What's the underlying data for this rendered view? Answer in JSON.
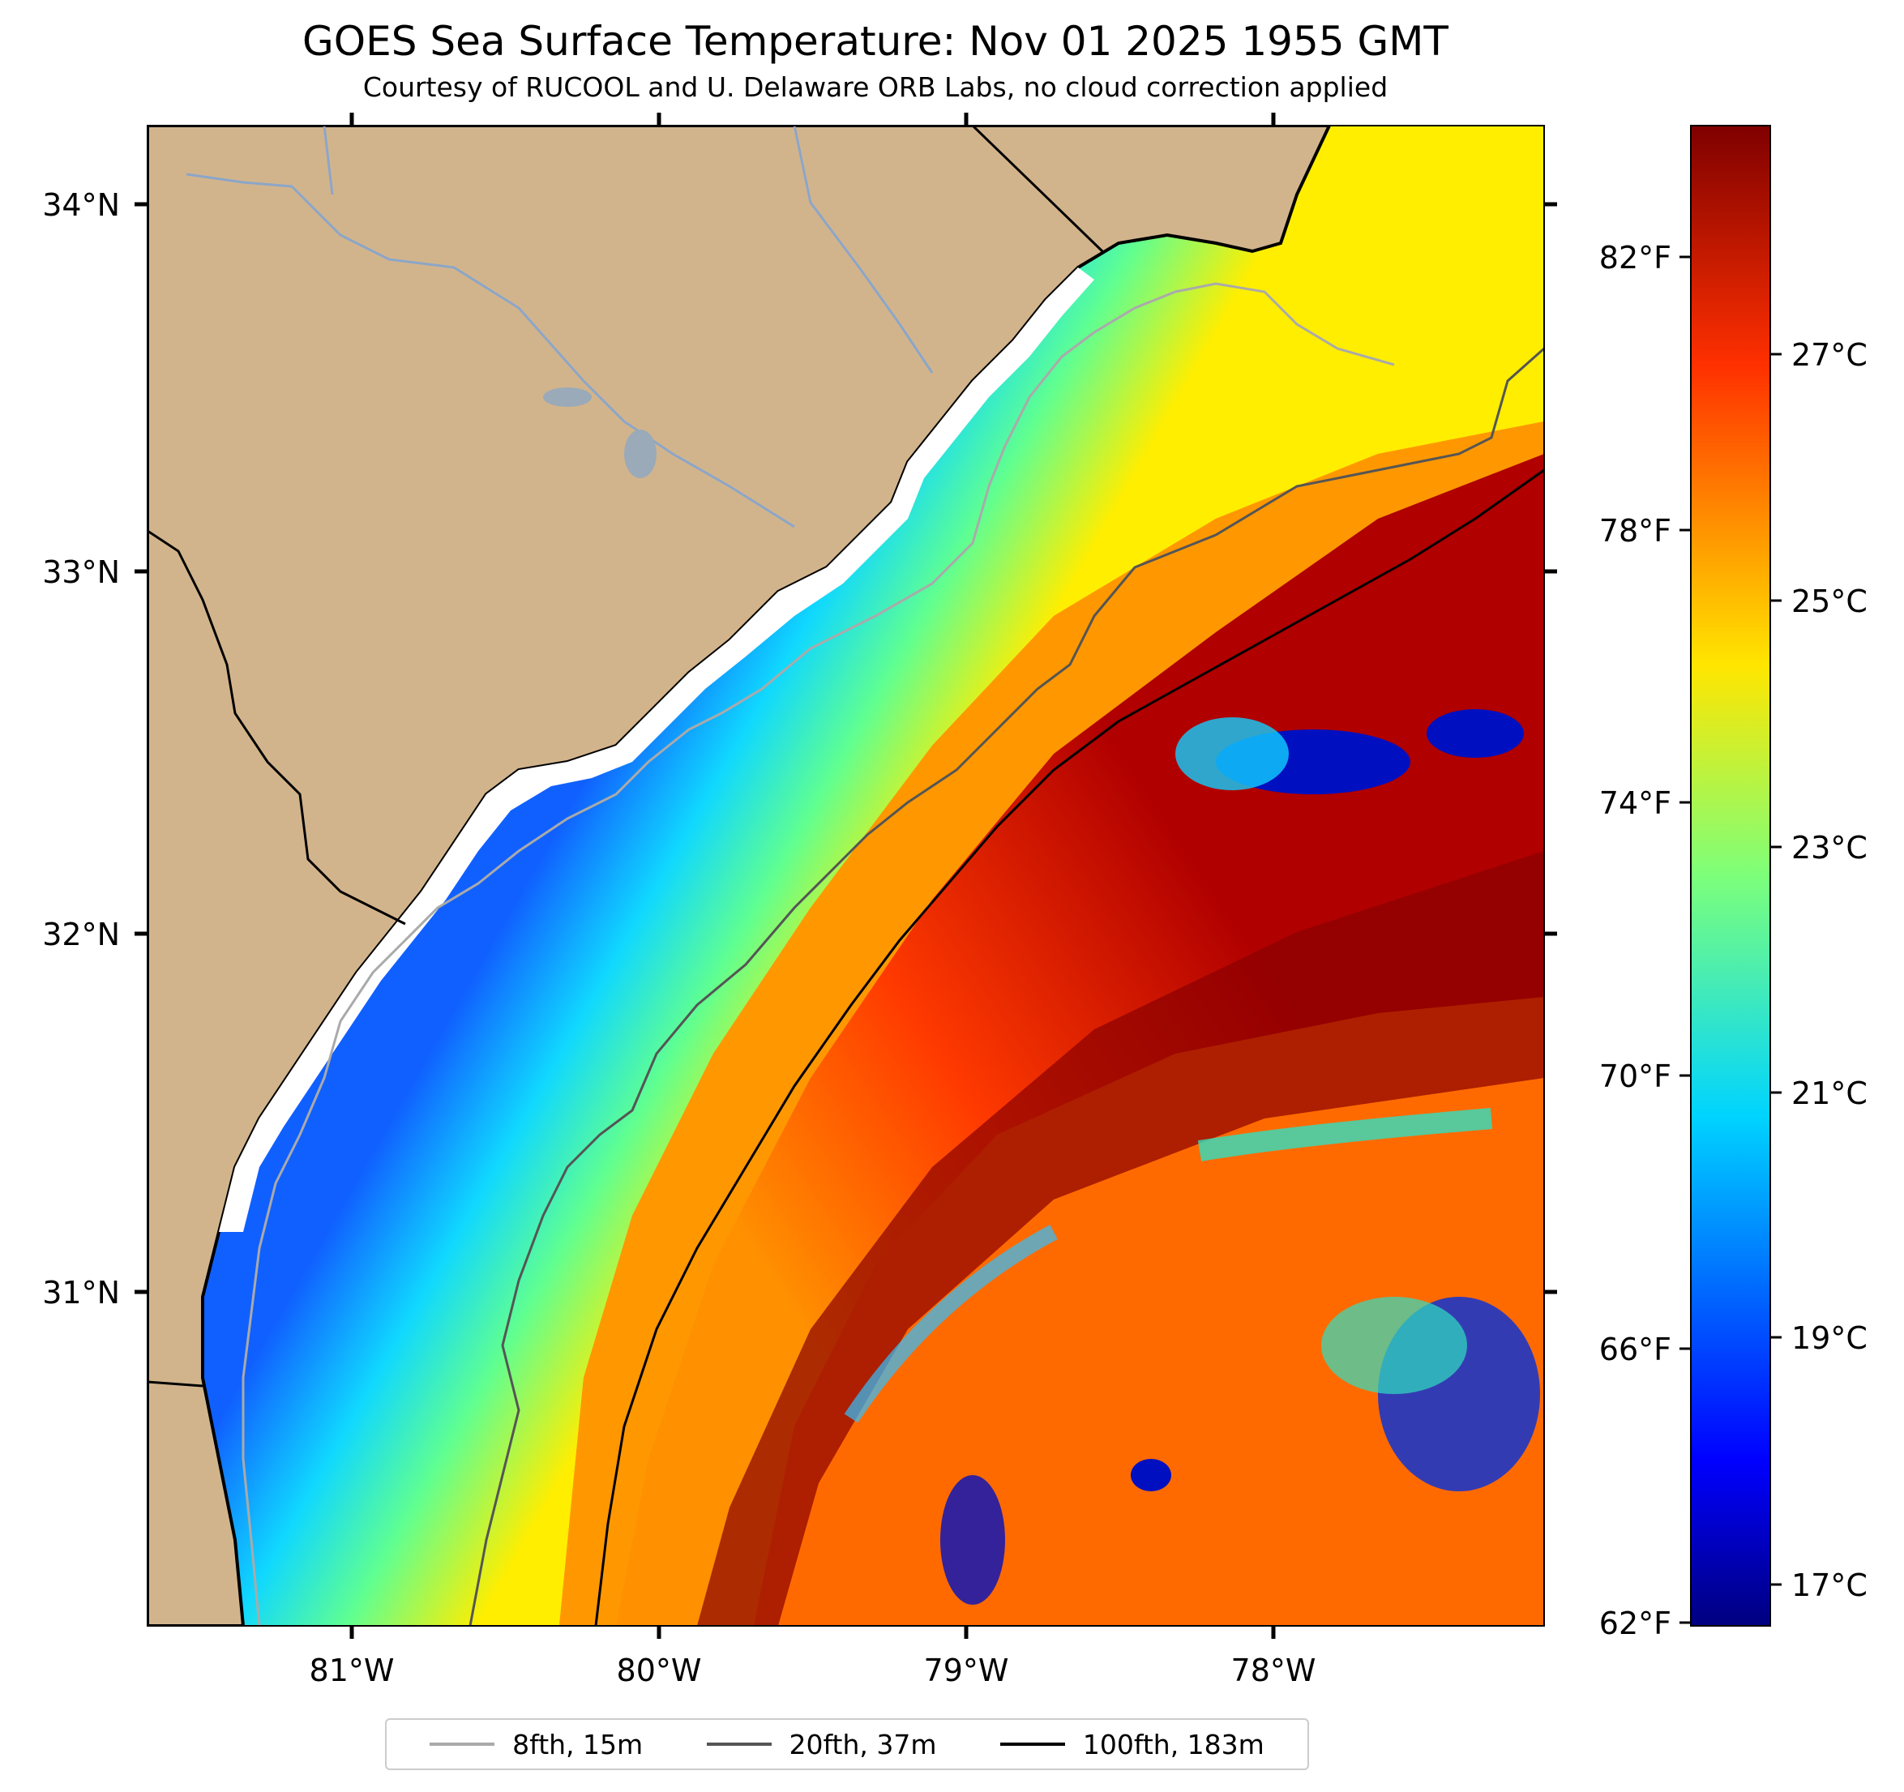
{
  "title": "GOES Sea Surface Temperature: Nov 01 2025 1955 GMT",
  "subtitle": "Courtesy of RUCOOL and U. Delaware ORB Labs, no cloud correction applied",
  "map": {
    "lon_range": [
      -81.67,
      -77.13
    ],
    "lat_range": [
      30.1,
      34.22
    ],
    "lon_ticks": [
      "81°W",
      "80°W",
      "79°W",
      "78°W"
    ],
    "lat_ticks": [
      "34°N",
      "33°N",
      "32°N",
      "31°N"
    ],
    "land_color": "#D2B48C",
    "coast_color": "#000000",
    "river_color": "#8CA6C8"
  },
  "colorbar": {
    "cmap": "jet",
    "celsius_range": [
      16.5,
      29.0
    ],
    "fahrenheit_labels": [
      "82°F",
      "78°F",
      "74°F",
      "70°F",
      "66°F",
      "62°F"
    ],
    "celsius_labels": [
      "27°C",
      "25°C",
      "23°C",
      "21°C",
      "19°C",
      "17°C"
    ]
  },
  "legend": [
    {
      "label": "8fth, 15m",
      "color": "#aaaaaa"
    },
    {
      "label": "20fth, 37m",
      "color": "#555555"
    },
    {
      "label": "100fth, 183m",
      "color": "#000000"
    }
  ],
  "colors": {
    "cold": "#00008b",
    "warm": "#7a0000",
    "mid": "#ffff00"
  }
}
